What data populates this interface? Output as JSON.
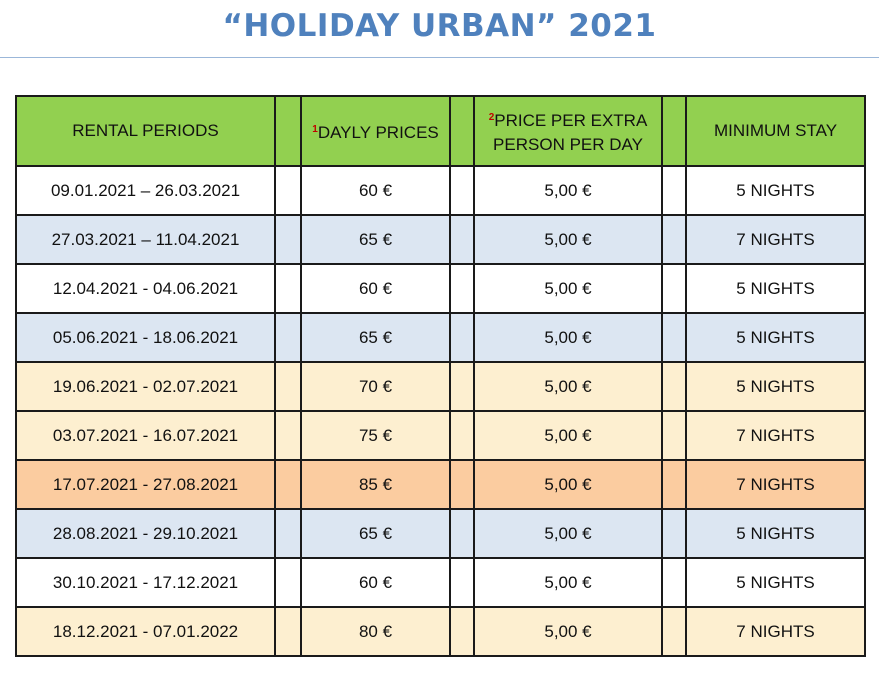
{
  "title": "“HOLIDAY URBAN” 2021",
  "header": {
    "rental_periods": "RENTAL PERIODS",
    "daily_note": "1",
    "daily_prices": "DAYLY PRICES",
    "extra_note": "2",
    "extra_line1": "PRICE PER EXTRA",
    "extra_line2": "PERSON PER DAY",
    "minimum_stay": "MINIMUM STAY"
  },
  "row_colors": {
    "white": "#ffffff",
    "blue": "#dce6f2",
    "cream": "#fdefd0",
    "orange": "#fbcca0",
    "header_green": "#92d050",
    "title_blue": "#4f81bd"
  },
  "rows": [
    {
      "period": "09.01.2021 – 26.03.2021",
      "daily": "60 €",
      "extra": "5,00 €",
      "stay": "5 NIGHTS",
      "color": "white"
    },
    {
      "period": "27.03.2021 – 11.04.2021",
      "daily": "65 €",
      "extra": "5,00 €",
      "stay": "7 NIGHTS",
      "color": "blue"
    },
    {
      "period": "12.04.2021 - 04.06.2021",
      "daily": "60 €",
      "extra": "5,00 €",
      "stay": "5 NIGHTS",
      "color": "white"
    },
    {
      "period": "05.06.2021 - 18.06.2021",
      "daily": "65 €",
      "extra": "5,00 €",
      "stay": "5 NIGHTS",
      "color": "blue"
    },
    {
      "period": "19.06.2021 - 02.07.2021",
      "daily": "70 €",
      "extra": "5,00 €",
      "stay": "5 NIGHTS",
      "color": "cream"
    },
    {
      "period": "03.07.2021 - 16.07.2021",
      "daily": "75 €",
      "extra": "5,00 €",
      "stay": "7 NIGHTS",
      "color": "cream"
    },
    {
      "period": "17.07.2021 - 27.08.2021",
      "daily": "85 €",
      "extra": "5,00 €",
      "stay": "7 NIGHTS",
      "color": "orange"
    },
    {
      "period": "28.08.2021 - 29.10.2021",
      "daily": "65 €",
      "extra": "5,00 €",
      "stay": "5 NIGHTS",
      "color": "blue"
    },
    {
      "period": "30.10.2021 - 17.12.2021",
      "daily": "60 €",
      "extra": "5,00 €",
      "stay": "5 NIGHTS",
      "color": "white"
    },
    {
      "period": "18.12.2021 - 07.01.2022",
      "daily": "80 €",
      "extra": "5,00 €",
      "stay": "7 NIGHTS",
      "color": "cream"
    }
  ]
}
